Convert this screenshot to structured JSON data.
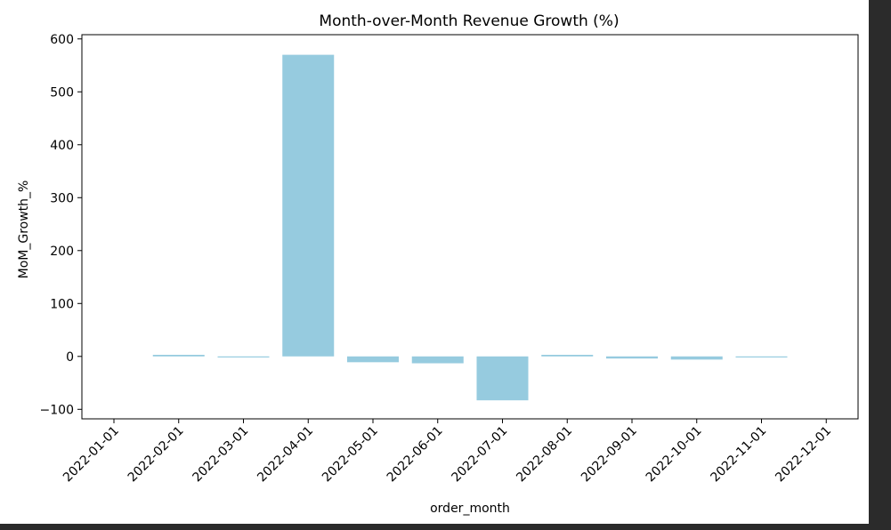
{
  "chart_data": {
    "type": "bar",
    "title": "Month-over-Month Revenue Growth (%)",
    "xlabel": "order_month",
    "ylabel": "MoM_Growth_%",
    "categories": [
      "2022-01-01",
      "2022-02-01",
      "2022-03-01",
      "2022-04-01",
      "2022-05-01",
      "2022-06-01",
      "2022-07-01",
      "2022-08-01",
      "2022-09-01",
      "2022-10-01",
      "2022-11-01",
      "2022-12-01"
    ],
    "values": [
      null,
      3,
      -2,
      570,
      -11,
      -13,
      -83,
      3,
      -4,
      -6,
      -2,
      null
    ],
    "yticks": [
      -100,
      0,
      100,
      200,
      300,
      400,
      500,
      600
    ],
    "ylim": [
      -118,
      608
    ],
    "grid": false,
    "bar_color": "#96cbdf"
  }
}
